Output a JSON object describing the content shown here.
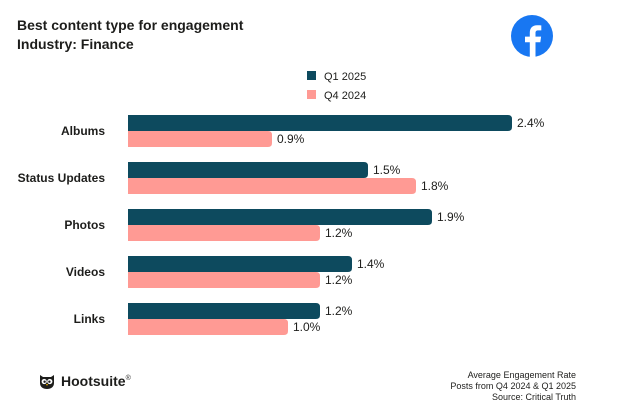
{
  "header": {
    "title": "Best content type for engagement",
    "subtitle": "Industry: Finance"
  },
  "logo": {
    "icon": "facebook-icon",
    "color": "#1877F2"
  },
  "chart_data": {
    "type": "bar",
    "orientation": "horizontal",
    "categories": [
      "Albums",
      "Status Updates",
      "Photos",
      "Videos",
      "Links"
    ],
    "series": [
      {
        "name": "Q1 2025",
        "values": [
          2.4,
          1.5,
          1.9,
          1.4,
          1.2
        ],
        "labels": [
          "2.4%",
          "1.5%",
          "1.9%",
          "1.4%",
          "1.2%"
        ],
        "color": "#0D4A5E"
      },
      {
        "name": "Q4 2024",
        "values": [
          0.9,
          1.8,
          1.2,
          1.2,
          1.0
        ],
        "labels": [
          "0.9%",
          "1.8%",
          "1.2%",
          "1.2%",
          "1.0%"
        ],
        "color": "#FF9A94"
      }
    ],
    "xlim": [
      0,
      2.4
    ],
    "grid": false,
    "legend_position": "top"
  },
  "brand": {
    "name": "Hootsuite",
    "mark": "®",
    "icon": "owl-icon"
  },
  "footer": {
    "line1": "Average Engagement Rate",
    "line2": "Posts from Q4 2024 & Q1 2025",
    "line3": "Source: Critical Truth"
  }
}
